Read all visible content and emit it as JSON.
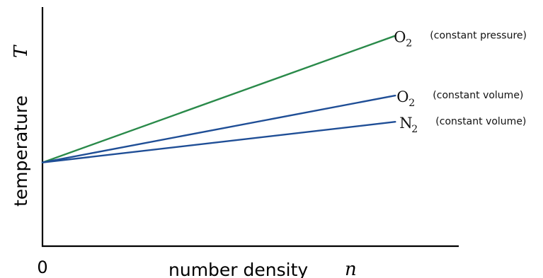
{
  "chart_data": {
    "type": "line",
    "xlabel": "number density",
    "xsymbol": "n",
    "ylabel": "temperature",
    "ysymbol": "T",
    "origin_label": "0",
    "x": [
      0,
      1
    ],
    "xlim": [
      0,
      1.18
    ],
    "ylim": [
      0,
      1
    ],
    "grid": false,
    "legend": "none (series labelled at line ends)",
    "series": [
      {
        "name": "O2 (constant pressure)",
        "label_main": "O",
        "label_sub": "2",
        "label_note": "(constant pressure)",
        "color": "#2a8a4a",
        "values": [
          0.35,
          0.88
        ]
      },
      {
        "name": "O2 (constant volume)",
        "label_main": "O",
        "label_sub": "2",
        "label_note": "(constant volume)",
        "color": "#1f4e96",
        "values": [
          0.35,
          0.63
        ]
      },
      {
        "name": "N2 (constant volume)",
        "label_main": "N",
        "label_sub": "2",
        "label_note": "(constant volume)",
        "color": "#1f4e96",
        "values": [
          0.35,
          0.52
        ]
      }
    ]
  }
}
